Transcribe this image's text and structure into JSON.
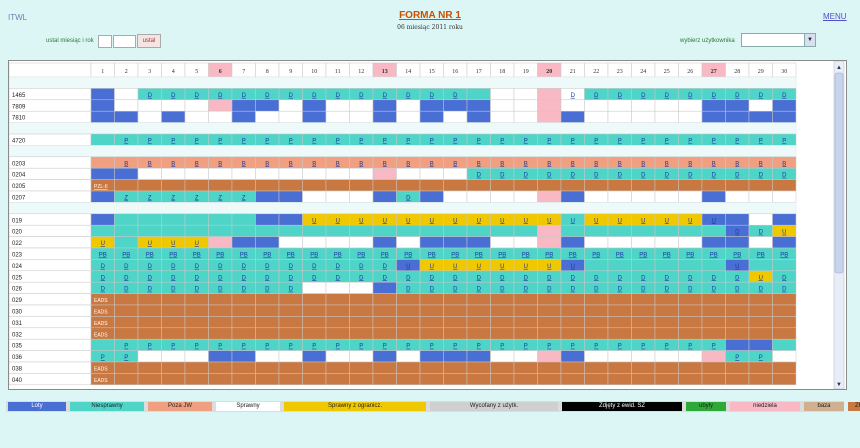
{
  "header": {
    "left": "ITWL",
    "title": "FORMA NR 1",
    "subtitle": "06 miesiąc 2011 roku",
    "menu": "MENU"
  },
  "controls": {
    "month_year_label": "ustal miesiąc i rok",
    "set_button": "ustal",
    "choose_user_label": "wybierz użytkownika",
    "user_select_value": ""
  },
  "colors": {
    "L": "#4a6fd4",
    "N": "#4fd4c8",
    "P": "#f0a080",
    "S": "#ffffff",
    "Y": "#f0c800",
    "W": "#d0d0d0",
    "Z": "#000000",
    "U": "#2ea836",
    "K": "#f8b8c4",
    "B": "#d0b090",
    "R": "#c87840",
    "blank": "#ffffff"
  },
  "days": [
    "1",
    "2",
    "3",
    "4",
    "5",
    "6",
    "7",
    "8",
    "9",
    "10",
    "11",
    "12",
    "13",
    "14",
    "15",
    "16",
    "17",
    "18",
    "19",
    "20",
    "21",
    "22",
    "23",
    "24",
    "25",
    "26",
    "27",
    "28",
    "29",
    "30"
  ],
  "highlight_days": [
    6,
    13,
    20,
    27
  ],
  "rows": [
    {
      "label": "",
      "blank": true
    },
    {
      "label": "1465",
      "cells": "LSNNNNNNNNNNNNNNNSSKSNNNNNNNNN",
      "marks": {
        "3": "D",
        "4": "D",
        "5": "D",
        "6": "D",
        "7": "D",
        "8": "D",
        "9": "D",
        "10": "D",
        "11": "D",
        "12": "D",
        "13": "D",
        "14": "D",
        "15": "D",
        "16": "D",
        "21": "D",
        "22": "D",
        "23": "D",
        "24": "D",
        "25": "D",
        "26": "D",
        "27": "D",
        "28": "D",
        "29": "D",
        "30": "D"
      }
    },
    {
      "label": "7809",
      "cells": "LSSSSKLLSLSSLSLLLSSKSSSSSSLLSL",
      "marks": {}
    },
    {
      "label": "7810",
      "cells": "LLSLSSLSSLSSLSLSLSSKLSSSSSLLLL",
      "marks": {}
    },
    {
      "label": "",
      "blank": true
    },
    {
      "label": "4720",
      "cells": "NNNNNNNNNNNNNNNNNNNNNNNNNNNNNN",
      "marks": {
        "2": "P",
        "3": "P",
        "4": "P",
        "5": "P",
        "6": "P",
        "7": "P",
        "8": "P",
        "9": "P",
        "10": "P",
        "11": "P",
        "12": "P",
        "13": "P",
        "14": "P",
        "15": "P",
        "16": "P",
        "17": "P",
        "18": "P",
        "19": "P",
        "20": "P",
        "21": "P",
        "22": "P",
        "23": "P",
        "24": "P",
        "25": "P",
        "26": "P",
        "27": "P",
        "28": "P",
        "29": "P",
        "30": "P"
      }
    },
    {
      "label": "",
      "blank": true
    },
    {
      "label": "0203",
      "cells": "PPPPPPPPPPPPPPPPPPPPPPPPPPPPPP",
      "marks": {
        "2": "B",
        "3": "B",
        "4": "B",
        "5": "B",
        "6": "B",
        "7": "B",
        "8": "B",
        "9": "B",
        "10": "B",
        "11": "B",
        "12": "B",
        "13": "B",
        "14": "B",
        "15": "B",
        "16": "B",
        "17": "B",
        "18": "B",
        "19": "B",
        "20": "B",
        "21": "B",
        "22": "B",
        "23": "B",
        "24": "B",
        "25": "B",
        "26": "B",
        "27": "B",
        "28": "B",
        "29": "B",
        "30": "B"
      }
    },
    {
      "label": "0204",
      "cells": "LLSSSSSSSSSSKSSSNNNNNNNNNNNNNN",
      "marks": {
        "17": "D",
        "18": "D",
        "19": "D",
        "20": "D",
        "21": "D",
        "22": "D",
        "23": "D",
        "24": "D",
        "25": "D",
        "26": "D",
        "27": "D",
        "28": "D",
        "29": "D",
        "30": "D"
      }
    },
    {
      "label": "0205",
      "cells": "RRRRRRRRRRRRRRRRRRRRRRRRRRRRRR",
      "marks": {
        "1": "PZL-II"
      }
    },
    {
      "label": "0207",
      "cells": "LNNNNNNLLSSSLNLSSSSKLSSSSSLSSS",
      "marks": {
        "2": "Z",
        "3": "Z",
        "4": "Z",
        "5": "Z",
        "6": "Z",
        "7": "Z",
        "14": "D"
      }
    },
    {
      "label": "",
      "blank": true
    },
    {
      "label": "019",
      "cells": "LNNNNNNLLYYYYYYYYYYYNYYYYYLLSL",
      "marks": {
        "10": "U",
        "11": "U",
        "12": "U",
        "13": "U",
        "14": "U",
        "15": "U",
        "16": "U",
        "17": "U",
        "18": "U",
        "19": "U",
        "20": "U",
        "21": "U",
        "22": "U",
        "23": "U",
        "24": "U",
        "25": "U",
        "26": "U",
        "27": "U"
      }
    },
    {
      "label": "020",
      "cells": "NNNNNNNNNNNNNNNNNNNKNNNNNNNLNY",
      "marks": {
        "28": "D",
        "29": "D",
        "30": "U"
      }
    },
    {
      "label": "022",
      "cells": "YNYYYKLLSSSSLSLLLSSKLSSSSSLLSL",
      "marks": {
        "1": "U",
        "3": "U",
        "4": "U",
        "5": "U"
      }
    },
    {
      "label": "023",
      "cells": "NNNNNNNNNNNNNNNNNNNNNNNNNNNNNN",
      "marks": {
        "1": "PB",
        "2": "PB",
        "3": "PB",
        "4": "PB",
        "5": "PB",
        "6": "PB",
        "7": "PB",
        "8": "PB",
        "9": "PB",
        "10": "PB",
        "11": "PB",
        "12": "PB",
        "13": "PB",
        "14": "PB",
        "15": "PB",
        "16": "PB",
        "17": "PB",
        "18": "PB",
        "19": "PB",
        "20": "PB",
        "21": "PB",
        "22": "PB",
        "23": "PB",
        "24": "PB",
        "25": "PB",
        "26": "PB",
        "27": "PB",
        "28": "PB",
        "29": "PB",
        "30": "PB"
      }
    },
    {
      "label": "024",
      "cells": "NNNNNNNNNNNNNLYYYYYYLNNNNNNLNN",
      "marks": {
        "1": "D",
        "2": "D",
        "3": "D",
        "4": "D",
        "5": "D",
        "6": "D",
        "7": "D",
        "8": "D",
        "9": "D",
        "10": "D",
        "11": "D",
        "12": "D",
        "13": "D",
        "14": "U",
        "15": "U",
        "16": "U",
        "17": "U",
        "18": "U",
        "19": "U",
        "20": "U",
        "21": "U",
        "28": "U"
      }
    },
    {
      "label": "025",
      "cells": "NNNNNNNNNNNNNNNNNNNNNNNNNNNNYN",
      "marks": {
        "1": "D",
        "2": "D",
        "3": "D",
        "4": "D",
        "5": "D",
        "6": "D",
        "7": "D",
        "8": "D",
        "9": "D",
        "10": "D",
        "11": "D",
        "12": "D",
        "13": "D",
        "14": "D",
        "15": "D",
        "16": "D",
        "17": "D",
        "18": "D",
        "19": "D",
        "20": "D",
        "21": "D",
        "22": "D",
        "23": "D",
        "24": "D",
        "25": "D",
        "26": "D",
        "27": "D",
        "28": "D",
        "29": "U",
        "30": "D"
      }
    },
    {
      "label": "026",
      "cells": "NNNNNNNNNSSSLNNNNNNNNNNNNNNNNN",
      "marks": {
        "1": "D",
        "2": "D",
        "3": "D",
        "4": "D",
        "5": "D",
        "6": "D",
        "7": "D",
        "8": "D",
        "9": "D",
        "14": "D",
        "15": "D",
        "16": "D",
        "17": "D",
        "18": "D",
        "19": "D",
        "20": "D",
        "21": "D",
        "22": "D",
        "23": "D",
        "24": "D",
        "25": "D",
        "26": "D",
        "27": "D",
        "28": "D",
        "29": "D",
        "30": "D"
      }
    },
    {
      "label": "029",
      "cells": "RRRRRRRRRRRRRRRRRRRRRRRRRRRRRR",
      "marks": {
        "1": "EADS"
      }
    },
    {
      "label": "030",
      "cells": "RRRRRRRRRRRRRRRRRRRRRRRRRRRRRR",
      "marks": {
        "1": "EADS"
      }
    },
    {
      "label": "031",
      "cells": "RRRRRRRRRRRRRRRRRRRRRRRRRRRRRR",
      "marks": {
        "1": "EADS"
      }
    },
    {
      "label": "032",
      "cells": "RRRRRRRRRRRRRRRRRRRRRRRRRRRRRR",
      "marks": {
        "1": "EADS"
      }
    },
    {
      "label": "035",
      "cells": "NNNNNNNNNNNNNNNNNNNNNNNNNNNLLN",
      "marks": {
        "2": "P",
        "3": "P",
        "4": "P",
        "5": "P",
        "6": "P",
        "7": "P",
        "8": "P",
        "9": "P",
        "10": "P",
        "11": "P",
        "12": "P",
        "13": "P",
        "14": "P",
        "15": "P",
        "16": "P",
        "17": "P",
        "18": "P",
        "19": "P",
        "20": "P",
        "21": "P",
        "22": "P",
        "23": "P",
        "24": "P",
        "25": "P",
        "26": "P",
        "27": "P"
      }
    },
    {
      "label": "036",
      "cells": "NNSSSLLSSLSSLSLLLSSKLSSSSSKNNS",
      "marks": {
        "1": "P",
        "2": "P",
        "28": "P",
        "29": "P"
      }
    },
    {
      "label": "038",
      "cells": "RRRRRRRRRRRRRRRRRRRRRRRRRRRRRR",
      "marks": {
        "1": "EADS"
      }
    },
    {
      "label": "040",
      "cells": "RRRRRRRRRRRRRRRRRRRRRRRRRRRRRR",
      "marks": {
        "1": "EADS"
      }
    }
  ],
  "legend": [
    {
      "label": "Loty",
      "color": "#4a6fd4",
      "text_color": "#ffffff"
    },
    {
      "label": "Niesprawny",
      "color": "#4fd4c8",
      "text_color": "#222222"
    },
    {
      "label": "Poza JW",
      "color": "#f0a080",
      "text_color": "#222222"
    },
    {
      "label": "Sprawny",
      "color": "#ffffff",
      "text_color": "#222222"
    },
    {
      "label": "Sprawny z ogranicz.",
      "color": "#f0c800",
      "text_color": "#222222"
    },
    {
      "label": "Wycofany z użytk.",
      "color": "#d0d0d0",
      "text_color": "#222222"
    },
    {
      "label": "Zdjęty z ewid. SZ",
      "color": "#000000",
      "text_color": "#ffffff"
    },
    {
      "label": "ubyły",
      "color": "#2ea836",
      "text_color": "#222222"
    },
    {
      "label": "niedziela",
      "color": "#f8b8c4",
      "text_color": "#222222"
    },
    {
      "label": "baza",
      "color": "#d0b090",
      "text_color": "#222222"
    },
    {
      "label": "ZR",
      "color": "#c87840",
      "text_color": "#222222"
    }
  ]
}
